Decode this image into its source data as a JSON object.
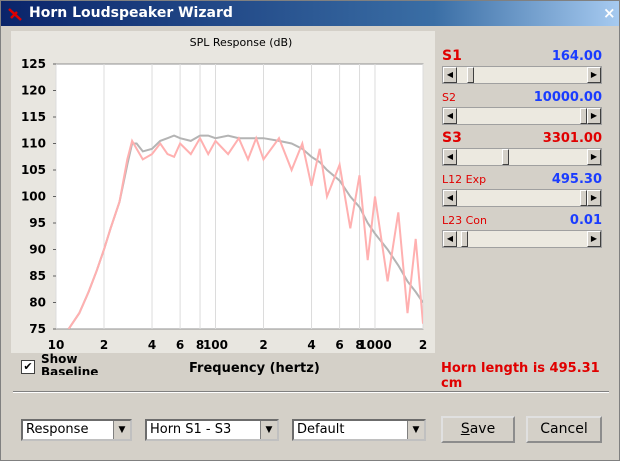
{
  "window": {
    "title": "Horn Loudspeaker Wizard",
    "close": "×"
  },
  "chart_data": {
    "type": "line",
    "title": "SPL Response (dB)",
    "x_label": "Frequency (hertz)",
    "x_log": true,
    "grid": "vertical",
    "xlim": [
      10,
      2000
    ],
    "xticks": [
      10,
      {
        "value": 20,
        "label": "2"
      },
      {
        "value": 40,
        "label": "4"
      },
      {
        "value": 60,
        "label": "6"
      },
      {
        "value": 80,
        "label": "8"
      },
      100,
      {
        "value": 200,
        "label": "2"
      },
      {
        "value": 400,
        "label": "4"
      },
      {
        "value": 600,
        "label": "6"
      },
      {
        "value": 800,
        "label": "8"
      },
      1000,
      {
        "value": 2000,
        "label": "2"
      }
    ],
    "ylim": [
      75,
      125
    ],
    "yticks": [
      75,
      80,
      85,
      90,
      95,
      100,
      105,
      110,
      115,
      120,
      125
    ],
    "x": [
      12,
      14,
      16,
      18,
      20,
      22,
      25,
      28,
      30,
      32,
      35,
      40,
      45,
      50,
      55,
      60,
      70,
      80,
      90,
      100,
      120,
      140,
      160,
      180,
      200,
      250,
      300,
      350,
      400,
      450,
      500,
      600,
      700,
      800,
      900,
      1000,
      1200,
      1400,
      1600,
      1800,
      2000
    ],
    "series": [
      {
        "color": "#b4b4b4",
        "values": [
          75,
          78,
          82,
          86,
          90,
          94,
          99,
          106,
          110,
          110,
          108.5,
          109,
          110.5,
          111,
          111.5,
          111,
          110.5,
          111.5,
          111.5,
          111,
          111.5,
          111,
          111,
          111,
          111,
          110.5,
          110,
          109,
          107.5,
          106.5,
          105,
          103,
          100,
          98,
          95,
          93,
          90,
          87,
          84,
          82,
          80
        ]
      },
      {
        "color": "#ffb0b0",
        "values": [
          75,
          78,
          82,
          86,
          90,
          94,
          99,
          107,
          110.5,
          109,
          107,
          108,
          110,
          108,
          107.5,
          110,
          108,
          111,
          108,
          110.5,
          108,
          111,
          107,
          111,
          107,
          111,
          105,
          110,
          102,
          109,
          100,
          106,
          94,
          104,
          88,
          100,
          84,
          97,
          78,
          92,
          76
        ]
      }
    ]
  },
  "baseline_checkbox": "Show Baseline",
  "sliders": [
    {
      "label": "S1",
      "value": "164.00"
    },
    {
      "label": "S2",
      "value": "10000.00"
    },
    {
      "label": "S3",
      "value": "3301.00"
    },
    {
      "label": "L12  Exp",
      "value": "495.30"
    },
    {
      "label": "L23  Con",
      "value": "0.01"
    }
  ],
  "status": "Horn length is 495.31 cm",
  "dropdowns": [
    "Response",
    "Horn S1 - S3",
    "Default"
  ],
  "buttons": [
    "Save",
    "Cancel"
  ]
}
